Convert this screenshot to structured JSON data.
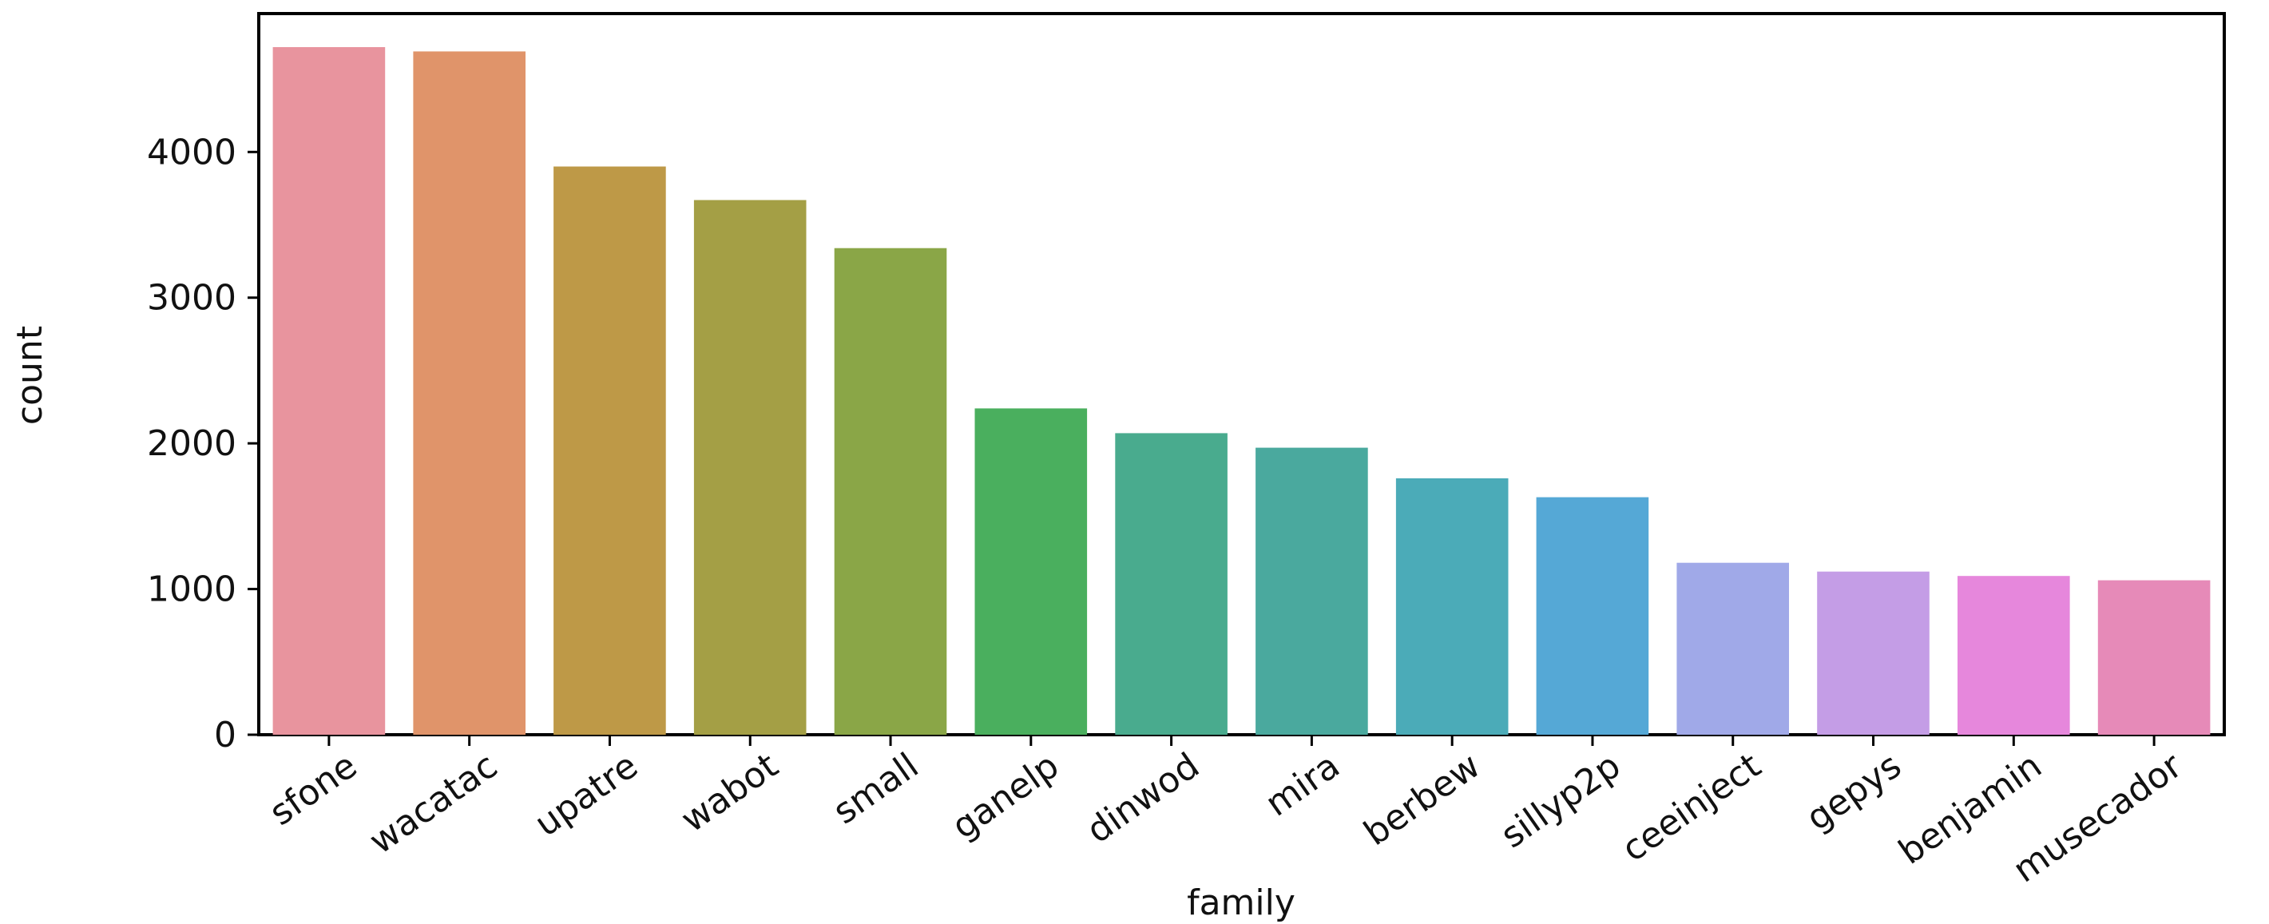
{
  "chart_data": {
    "type": "bar",
    "xlabel": "family",
    "ylabel": "count",
    "categories": [
      "sfone",
      "wacatac",
      "upatre",
      "wabot",
      "small",
      "ganelp",
      "dinwod",
      "mira",
      "berbew",
      "sillyp2p",
      "ceeinject",
      "gepys",
      "benjamin",
      "musecador"
    ],
    "values": [
      4720,
      4690,
      3900,
      3670,
      3340,
      2240,
      2070,
      1970,
      1760,
      1630,
      1180,
      1120,
      1090,
      1060
    ],
    "colors": [
      "#e8949e",
      "#e0946a",
      "#be9947",
      "#a49f45",
      "#8aa647",
      "#4aaf5e",
      "#49ab8e",
      "#4aa99e",
      "#4babb8",
      "#55a8d6",
      "#a0a9e8",
      "#c49de6",
      "#e687dc",
      "#e68ab8"
    ],
    "yticks": [
      0,
      1000,
      2000,
      3000,
      4000
    ],
    "ylim": [
      0,
      4950
    ],
    "grid": false
  }
}
